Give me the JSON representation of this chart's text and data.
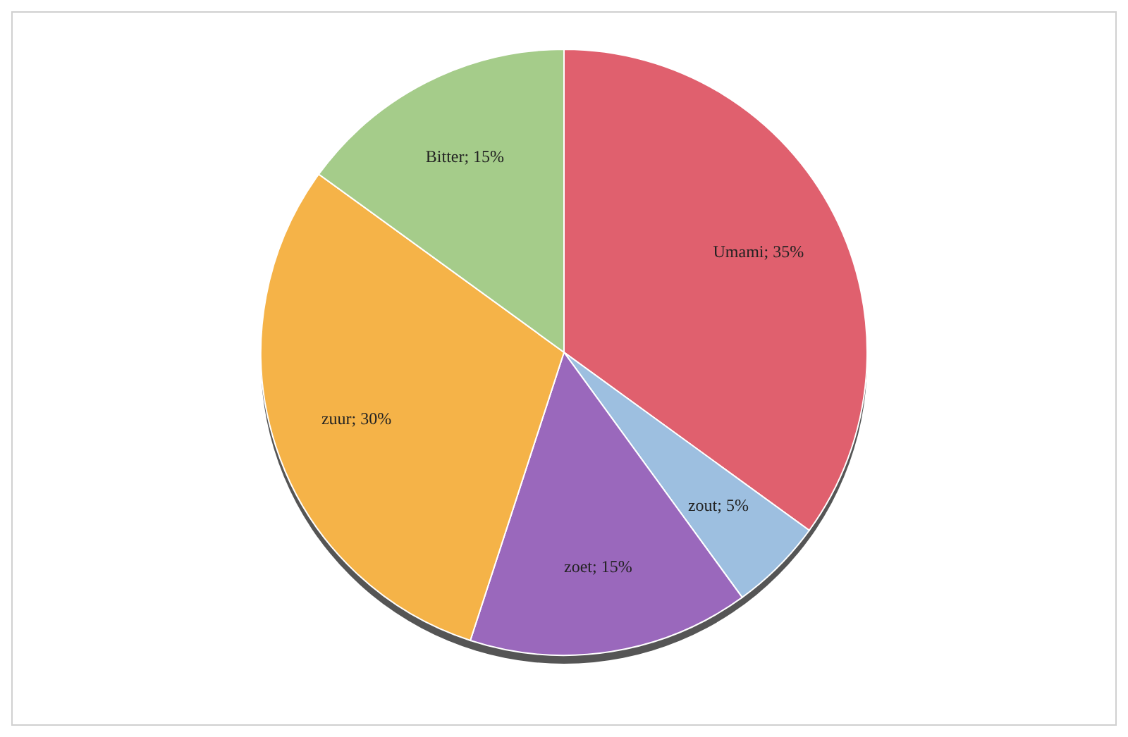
{
  "chart_data": {
    "type": "pie",
    "categories": [
      "Umami",
      "zout",
      "zoet",
      "zuur",
      "Bitter"
    ],
    "values": [
      35,
      5,
      15,
      30,
      15
    ],
    "colors": [
      "#e0606e",
      "#9dbfe0",
      "#9a68bc",
      "#f5b348",
      "#a5cc8a"
    ],
    "value_labels": [
      "; 35%",
      "; 5%",
      "; 15%",
      "; 30%",
      "; 15%"
    ]
  }
}
